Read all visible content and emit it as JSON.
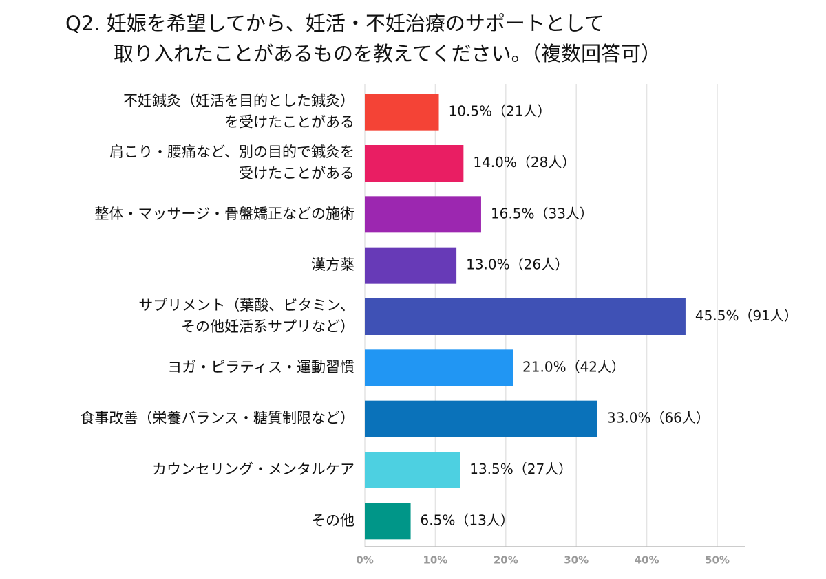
{
  "chart_data": {
    "type": "barh",
    "title": [
      "Q2. 妊娠を希望してから、妊活・不妊治療のサポートとして",
      "取り入れたことがあるものを教えてください。（複数回答可）"
    ],
    "categories": [
      [
        "不妊鍼灸（妊活を目的とした鍼灸）",
        "を受けたことがある"
      ],
      [
        "肩こり・腰痛など、別の目的で鍼灸を",
        "受けたことがある"
      ],
      [
        "整体・マッサージ・骨盤矯正などの施術"
      ],
      [
        "漢方薬"
      ],
      [
        "サプリメント（葉酸、ビタミン、",
        "その他妊活系サプリなど）"
      ],
      [
        "ヨガ・ピラティス・運動習慣"
      ],
      [
        "食事改善（栄養バランス・糖質制限など）"
      ],
      [
        "カウンセリング・メンタルケア"
      ],
      [
        "その他"
      ]
    ],
    "values": [
      10.5,
      14.0,
      16.5,
      13.0,
      45.5,
      21.0,
      33.0,
      13.5,
      6.5
    ],
    "value_labels": [
      "10.5%（21人）",
      "14.0%（28人）",
      "16.5%（33人）",
      "13.0%（26人）",
      "45.5%（91人）",
      "21.0%（42人）",
      "33.0%（66人）",
      "13.5%（27人）",
      "6.5%（13人）"
    ],
    "colors": [
      "#f44336",
      "#e91e63",
      "#9c27b0",
      "#673ab7",
      "#3f51b5",
      "#2196f3",
      "#0a72ba",
      "#4dd0e1",
      "#009688"
    ],
    "xlim": [
      0,
      54
    ],
    "xticks": [
      {
        "value": 0,
        "label": "0%"
      },
      {
        "value": 10,
        "label": "10%"
      },
      {
        "value": 20,
        "label": "20%"
      },
      {
        "value": 30,
        "label": "30%"
      },
      {
        "value": 40,
        "label": "40%"
      },
      {
        "value": 50,
        "label": "50%"
      }
    ],
    "grid": true
  }
}
